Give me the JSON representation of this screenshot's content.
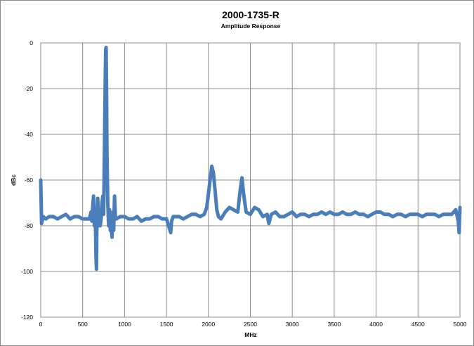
{
  "chart_data": {
    "type": "line",
    "title": "2000-1735-R",
    "subtitle": "Amplitude Response",
    "xlabel": "MHz",
    "ylabel": "dBc",
    "xlim": [
      0,
      5000
    ],
    "ylim": [
      -120,
      0
    ],
    "xticks": [
      0,
      500,
      1000,
      1500,
      2000,
      2500,
      3000,
      3500,
      4000,
      4500,
      5000
    ],
    "yticks": [
      0,
      -20,
      -40,
      -60,
      -80,
      -100,
      -120
    ],
    "grid": true,
    "line_color": "#4a7ebb",
    "series": [
      {
        "x": [
          0,
          10,
          30,
          60,
          100,
          150,
          200,
          250,
          300,
          350,
          400,
          450,
          500,
          550,
          580,
          600,
          610,
          620,
          630,
          640,
          650,
          660,
          665,
          670,
          680,
          690,
          700,
          710,
          720,
          730,
          740,
          750,
          760,
          770,
          775,
          780,
          785,
          790,
          800,
          810,
          820,
          830,
          840,
          850,
          860,
          870,
          880,
          890,
          900,
          950,
          1000,
          1050,
          1100,
          1150,
          1200,
          1250,
          1300,
          1350,
          1400,
          1450,
          1500,
          1550,
          1560,
          1580,
          1600,
          1650,
          1700,
          1750,
          1800,
          1850,
          1900,
          1950,
          1980,
          2000,
          2020,
          2040,
          2060,
          2080,
          2100,
          2120,
          2150,
          2200,
          2250,
          2300,
          2350,
          2380,
          2400,
          2420,
          2450,
          2500,
          2550,
          2600,
          2650,
          2700,
          2720,
          2750,
          2800,
          2850,
          2900,
          2950,
          3000,
          3050,
          3100,
          3150,
          3200,
          3250,
          3300,
          3350,
          3400,
          3450,
          3500,
          3550,
          3600,
          3650,
          3700,
          3750,
          3800,
          3850,
          3900,
          3950,
          4000,
          4050,
          4100,
          4150,
          4200,
          4250,
          4300,
          4350,
          4400,
          4450,
          4500,
          4550,
          4600,
          4650,
          4700,
          4750,
          4800,
          4850,
          4900,
          4950,
          4980,
          4990,
          5000
        ],
        "y": [
          -60,
          -79,
          -76,
          -77,
          -76,
          -76,
          -77,
          -76,
          -75,
          -77,
          -76,
          -76,
          -77,
          -77,
          -77,
          -74,
          -78,
          -72,
          -67,
          -80,
          -74,
          -95,
          -99,
          -78,
          -68,
          -80,
          -74,
          -80,
          -77,
          -70,
          -67,
          -75,
          -48,
          -15,
          -3,
          -2,
          -20,
          -48,
          -70,
          -80,
          -73,
          -82,
          -80,
          -85,
          -74,
          -82,
          -67,
          -76,
          -77,
          -76,
          -76,
          -77,
          -77,
          -76,
          -78,
          -77,
          -77,
          -76,
          -76,
          -77,
          -77,
          -83,
          -78,
          -76,
          -76,
          -76,
          -77,
          -76,
          -75,
          -75,
          -76,
          -75,
          -72,
          -66,
          -60,
          -54,
          -57,
          -65,
          -73,
          -76,
          -77,
          -74,
          -72,
          -73,
          -74,
          -64,
          -59,
          -66,
          -74,
          -75,
          -72,
          -73,
          -76,
          -75,
          -79,
          -75,
          -74,
          -76,
          -76,
          -75,
          -74,
          -76,
          -75,
          -75,
          -76,
          -75,
          -75,
          -74,
          -75,
          -74,
          -75,
          -75,
          -74,
          -75,
          -75,
          -74,
          -75,
          -75,
          -76,
          -75,
          -74,
          -74,
          -75,
          -75,
          -76,
          -75,
          -75,
          -76,
          -75,
          -75,
          -75,
          -76,
          -75,
          -75,
          -75,
          -76,
          -75,
          -75,
          -75,
          -73,
          -78,
          -83,
          -72
        ]
      }
    ]
  }
}
